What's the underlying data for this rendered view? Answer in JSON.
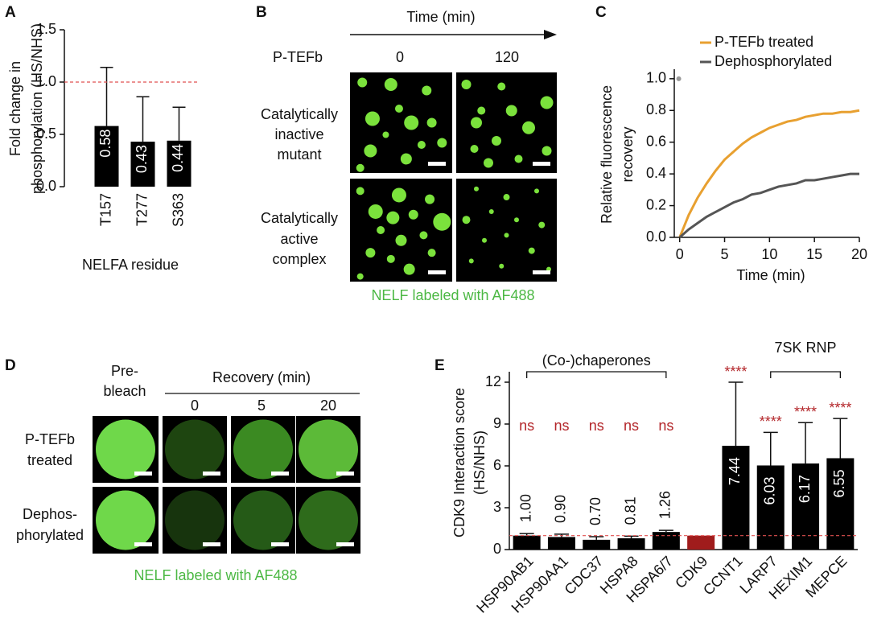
{
  "chart_data": [
    {
      "type": "bar",
      "label": "A",
      "ylabel": [
        "Fold change in",
        "phosphorylation (HS/NHS)"
      ],
      "xlabel": "NELFA residue",
      "categories": [
        "T157",
        "T277",
        "S363"
      ],
      "values": [
        0.58,
        0.43,
        0.44
      ],
      "errors": [
        0.56,
        0.43,
        0.32
      ],
      "color": "#000000",
      "ylim": [
        0,
        1.5
      ],
      "yticks": [
        {
          "value": 0,
          "label": "0.0"
        },
        0.5,
        {
          "value": 1,
          "label": "1.0"
        },
        1.5
      ],
      "reference_line": 1,
      "reference_color": "#e05050"
    },
    {
      "type": "line",
      "label": "C",
      "ylabel": [
        "Relative fluorescence",
        "recovery"
      ],
      "xlabel": "Time (min)",
      "x": [
        0,
        1,
        2,
        3,
        4,
        5,
        6,
        7,
        8,
        9,
        10,
        11,
        12,
        13,
        14,
        15,
        16,
        17,
        18,
        19,
        20
      ],
      "series": [
        {
          "name": "P-TEFb treated",
          "color": "#e8a030",
          "values": [
            0,
            0.14,
            0.25,
            0.34,
            0.42,
            0.49,
            0.54,
            0.59,
            0.63,
            0.66,
            0.69,
            0.71,
            0.73,
            0.74,
            0.76,
            0.77,
            0.78,
            0.78,
            0.79,
            0.79,
            0.8
          ]
        },
        {
          "name": "Dephosphorylated",
          "color": "#555555",
          "values": [
            0,
            0.05,
            0.09,
            0.13,
            0.16,
            0.19,
            0.22,
            0.24,
            0.27,
            0.28,
            0.3,
            0.32,
            0.33,
            0.34,
            0.36,
            0.36,
            0.37,
            0.38,
            0.39,
            0.4,
            0.4
          ]
        }
      ],
      "points": [
        {
          "x": -0.1,
          "y": 1.0,
          "color": "#999999"
        }
      ],
      "xlim": [
        -0.6,
        20
      ],
      "xticks": [
        0,
        5,
        10,
        15,
        20
      ],
      "ylim": [
        0,
        1.06
      ],
      "yticks": [
        {
          "value": 0,
          "label": "0.0"
        },
        0.2,
        0.4,
        0.6,
        0.8,
        {
          "value": 1,
          "label": "1.0"
        }
      ]
    },
    {
      "type": "bar",
      "label": "E",
      "ylabel": [
        "CDK9 Interaction score",
        "(HS/NHS)"
      ],
      "categories": [
        "HSP90AB1",
        "HSP90AA1",
        "CDC37",
        "HSPA8",
        "HSPA6/7",
        "CDK9",
        "CCNT1",
        "LARP7",
        "HEXIM1",
        "MEPCE"
      ],
      "values": [
        1,
        0.9,
        0.7,
        0.81,
        1.26,
        1,
        7.44,
        6.03,
        6.17,
        6.55
      ],
      "value_labels": [
        "1.00",
        "0.90",
        "0.70",
        "0.81",
        "1.26",
        null,
        "7.44",
        "6.03",
        "6.17",
        "6.55"
      ],
      "errors": [
        0.15,
        0.2,
        0.22,
        0.15,
        0.12,
        null,
        4.56,
        2.37,
        2.93,
        2.85
      ],
      "significance": [
        "ns",
        "ns",
        "ns",
        "ns",
        "ns",
        null,
        "****",
        "****",
        "****",
        "****"
      ],
      "colors": [
        "#000000",
        "#000000",
        "#000000",
        "#000000",
        "#000000",
        "#a01c1c",
        "#000000",
        "#000000",
        "#000000",
        "#000000"
      ],
      "groups": [
        {
          "label": "(Co-)chaperones",
          "start": 0,
          "end": 4
        },
        {
          "label": "7SK RNP",
          "start": 7,
          "end": 9
        }
      ],
      "ylim": [
        0,
        12.75
      ],
      "yticks": [
        0,
        3,
        6,
        9,
        12
      ],
      "reference_line": 1,
      "reference_color": "#e05050"
    }
  ],
  "panel_b": {
    "label": "B",
    "time_label": "Time (min)",
    "row_header": "P-TEFb",
    "columns": [
      "0",
      "120"
    ],
    "rows": [
      {
        "label": [
          "Catalytically",
          "inactive",
          "mutant"
        ]
      },
      {
        "label": [
          "Catalytically",
          "active",
          "complex"
        ]
      }
    ],
    "caption": "NELF labeled with AF488"
  },
  "panel_d": {
    "label": "D",
    "prebleach": [
      "Pre-",
      "bleach"
    ],
    "recovery_label": "Recovery (min)",
    "columns": [
      "0",
      "5",
      "20"
    ],
    "rows": [
      {
        "label": [
          "P-TEFb",
          "treated"
        ]
      },
      {
        "label": [
          "Dephos-",
          "phorylated"
        ]
      }
    ],
    "caption": "NELF labeled with AF488"
  }
}
